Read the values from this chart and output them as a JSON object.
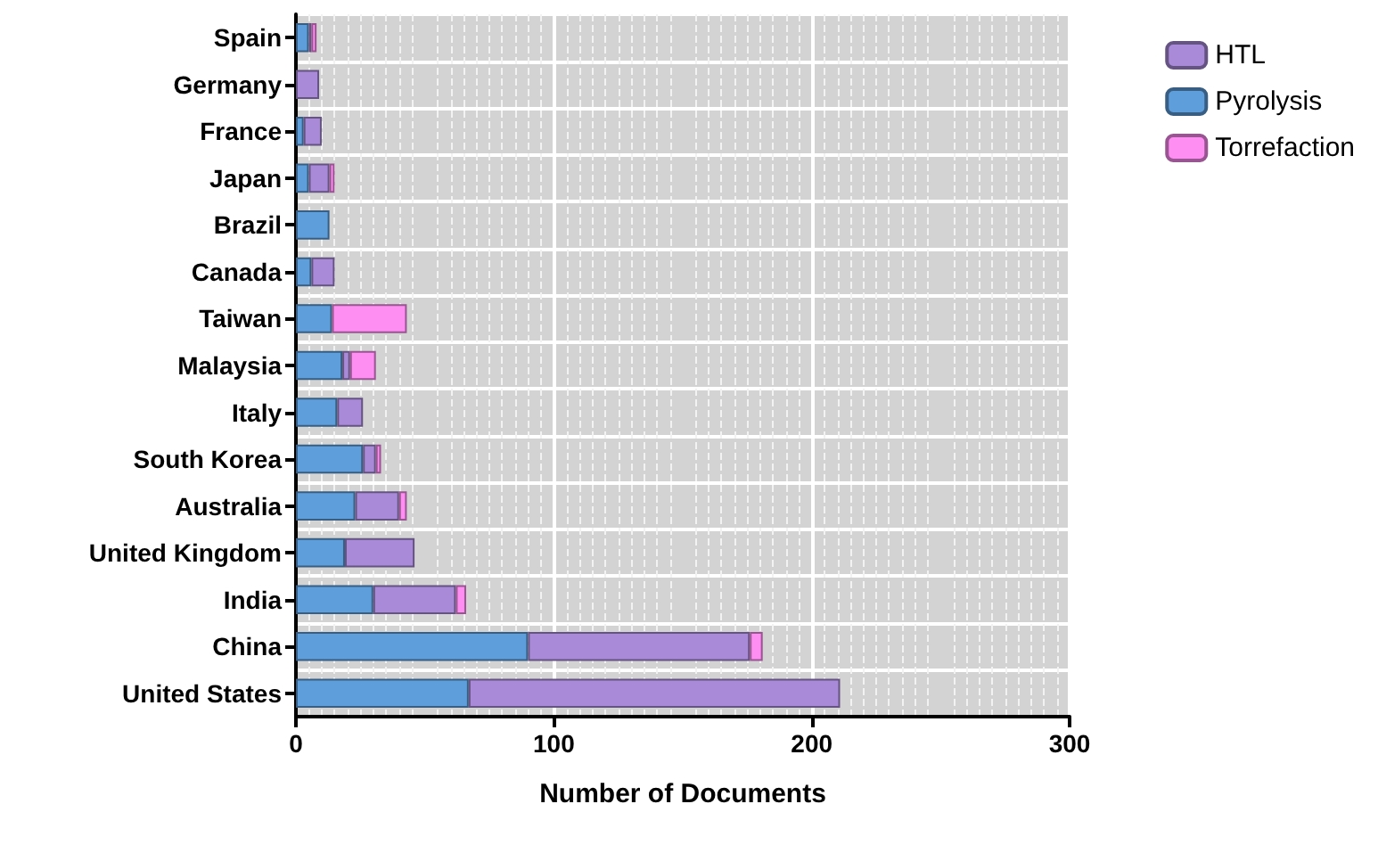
{
  "chart_data": {
    "type": "bar",
    "orientation": "horizontal",
    "stacked": true,
    "xlabel": "Number of Documents",
    "categories": [
      "Spain",
      "Germany",
      "France",
      "Japan",
      "Brazil",
      "Canada",
      "Taiwan",
      "Malaysia",
      "Italy",
      "South Korea",
      "Australia",
      "United Kingdom",
      "India",
      "China",
      "United States"
    ],
    "series": [
      {
        "name": "Pyrolysis",
        "color": "#5e9edb",
        "values": [
          5,
          0,
          3,
          5,
          13,
          6,
          14,
          18,
          16,
          26,
          23,
          19,
          30,
          90,
          67
        ]
      },
      {
        "name": "HTL",
        "color": "#a98ad8",
        "values": [
          1,
          9,
          7,
          8,
          0,
          9,
          0,
          3,
          10,
          5,
          17,
          27,
          32,
          86,
          144
        ]
      },
      {
        "name": "Torrefaction",
        "color": "#fe8ef2",
        "values": [
          2,
          0,
          0,
          2,
          0,
          0,
          29,
          10,
          0,
          2,
          3,
          0,
          4,
          5,
          0
        ]
      }
    ],
    "xlim": [
      0,
      300
    ],
    "xticks": [
      0,
      100,
      200,
      300
    ],
    "grid": true,
    "legend": "top right"
  }
}
